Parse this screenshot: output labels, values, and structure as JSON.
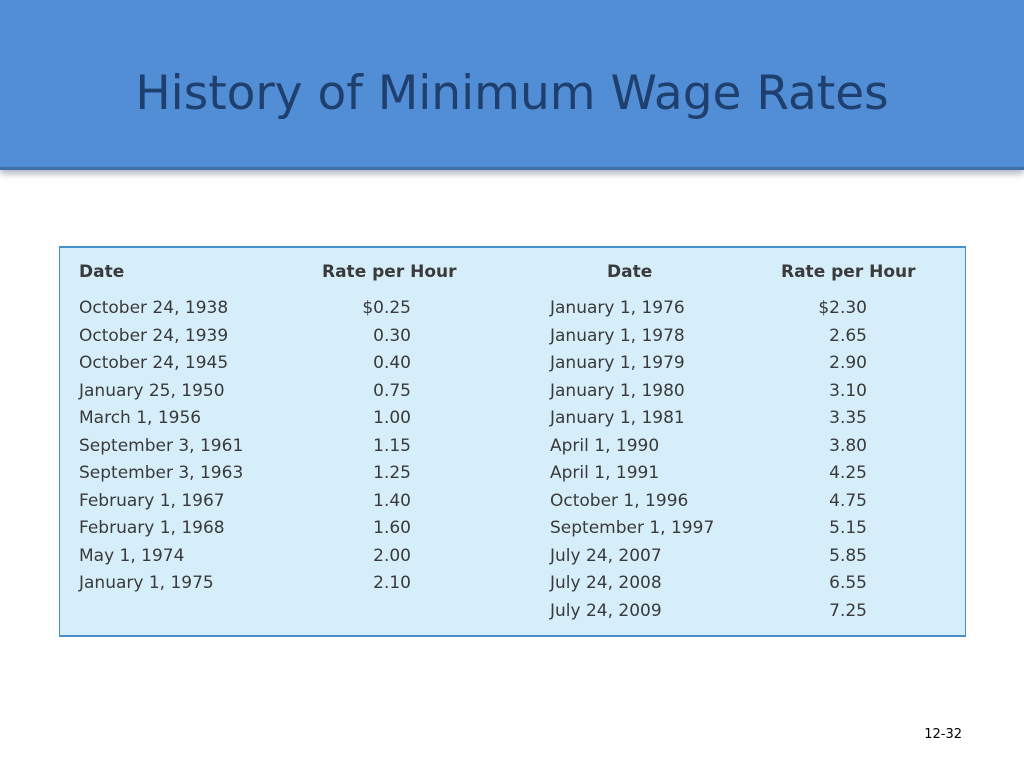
{
  "slide": {
    "title": "History of Minimum Wage Rates",
    "page_number": "12-32"
  },
  "table": {
    "headers": {
      "left_date": "Date",
      "left_rate": "Rate per Hour",
      "right_date": "Date",
      "right_rate": "Rate per Hour"
    },
    "left_rows": [
      {
        "date": "October 24, 1938",
        "rate": "$0.25"
      },
      {
        "date": "October 24, 1939",
        "rate": "0.30"
      },
      {
        "date": "October 24, 1945",
        "rate": "0.40"
      },
      {
        "date": "January 25, 1950",
        "rate": "0.75"
      },
      {
        "date": "March 1, 1956",
        "rate": "1.00"
      },
      {
        "date": "September 3, 1961",
        "rate": "1.15"
      },
      {
        "date": "September 3, 1963",
        "rate": "1.25"
      },
      {
        "date": "February 1, 1967",
        "rate": "1.40"
      },
      {
        "date": "February 1, 1968",
        "rate": "1.60"
      },
      {
        "date": "May 1, 1974",
        "rate": "2.00"
      },
      {
        "date": "January 1, 1975",
        "rate": "2.10"
      }
    ],
    "right_rows": [
      {
        "date": "January 1, 1976",
        "rate": "$2.30"
      },
      {
        "date": "January 1, 1978",
        "rate": "2.65"
      },
      {
        "date": "January 1, 1979",
        "rate": "2.90"
      },
      {
        "date": "January 1, 1980",
        "rate": "3.10"
      },
      {
        "date": "January 1, 1981",
        "rate": "3.35"
      },
      {
        "date": "April 1, 1990",
        "rate": "3.80"
      },
      {
        "date": "April 1, 1991",
        "rate": "4.25"
      },
      {
        "date": "October 1, 1996",
        "rate": "4.75"
      },
      {
        "date": "September 1, 1997",
        "rate": "5.15"
      },
      {
        "date": "July 24, 2007",
        "rate": "5.85"
      },
      {
        "date": "July 24, 2008",
        "rate": "6.55"
      },
      {
        "date": "July 24, 2009",
        "rate": "7.25"
      }
    ]
  },
  "colors": {
    "title_band": "#528ed6",
    "title_text": "#1f3f6e",
    "table_background": "#d6eefa",
    "table_border": "#4a90c8"
  }
}
